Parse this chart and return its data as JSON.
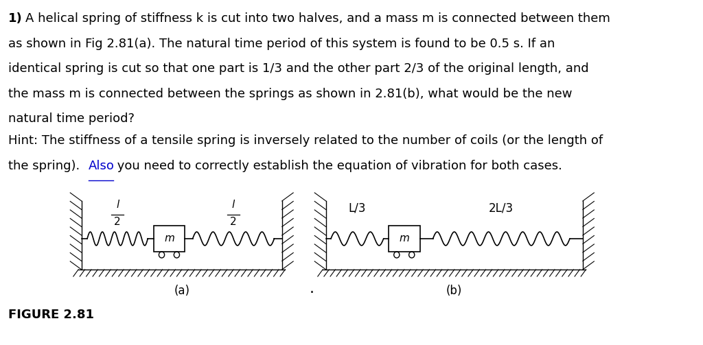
{
  "bg_color": "#ffffff",
  "text_color": "#000000",
  "body_text_size": 13,
  "line1": "A helical spring of stiffness k is cut into two halves, and a mass m is connected between them",
  "line2": "as shown in Fig 2.81(a). The natural time period of this system is found to be 0.5 s. If an",
  "line3": "identical spring is cut so that one part is 1/3 and the other part 2/3 of the original length, and",
  "line4": "the mass m is connected between the springs as shown in 2.81(b), what would be the new",
  "line5": "natural time period?",
  "hint_line1": "Hint: The stiffness of a tensile spring is inversely related to the number of coils (or the length of",
  "hint_line2_pre": "the spring). ",
  "hint_line2_also": "Also",
  "hint_line2_post": " you need to correctly establish the equation of vibration for both cases.",
  "figure_label": "FIGURE 2.81",
  "sub_a": "(a)",
  "sub_b": "(b)",
  "label_L3": "L/3",
  "label_2L3": "2L/3",
  "label_m": "m",
  "also_color": "#0000cc"
}
